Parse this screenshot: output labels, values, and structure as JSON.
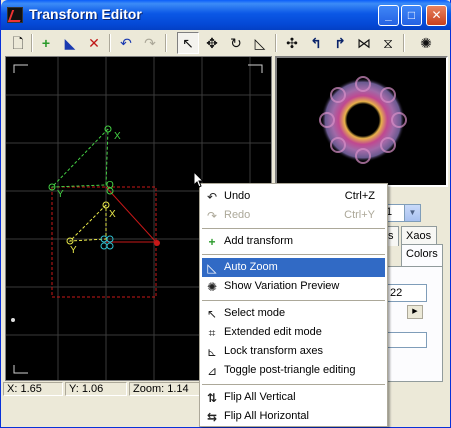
{
  "window": {
    "title": "Transform Editor"
  },
  "titlebar": {
    "minimize": "_",
    "maximize": "□",
    "close": "✕"
  },
  "toolbar": {
    "tools": [
      {
        "name": "new-icon",
        "glyph": "🗋"
      },
      {
        "name": "add-transform-icon",
        "glyph": "+"
      },
      {
        "name": "duplicate-icon",
        "glyph": "◣"
      },
      {
        "name": "delete-icon",
        "glyph": "✕"
      },
      {
        "name": "undo-icon",
        "glyph": "↶"
      },
      {
        "name": "redo-icon",
        "glyph": "↷"
      },
      {
        "name": "select-icon",
        "glyph": "↖"
      },
      {
        "name": "move-icon",
        "glyph": "✥"
      },
      {
        "name": "rotate-icon",
        "glyph": "↻"
      },
      {
        "name": "scale-icon",
        "glyph": "◺"
      },
      {
        "name": "transform-axes-icon",
        "glyph": "✣"
      },
      {
        "name": "rotate-left-icon",
        "glyph": "↰"
      },
      {
        "name": "rotate-right-icon",
        "glyph": "↱"
      },
      {
        "name": "flip-horizontal-icon",
        "glyph": "⋈"
      },
      {
        "name": "flip-vertical-icon",
        "glyph": "⧖"
      },
      {
        "name": "variation-preview-icon",
        "glyph": "✺"
      }
    ]
  },
  "panel": {
    "combo_value": "1",
    "tabs": [
      "s",
      "Xaos",
      "Colors"
    ],
    "field1": "22",
    "scroll_glyph": "▶"
  },
  "status": {
    "x": "X: 1.65",
    "y": "Y: 1.06",
    "zoom": "Zoom: 1.14"
  },
  "menu": {
    "items": [
      {
        "label": "Undo",
        "shortcut": "Ctrl+Z",
        "icon": "↶",
        "icon_name": "undo-icon",
        "disabled": false
      },
      {
        "label": "Redo",
        "shortcut": "Ctrl+Y",
        "icon": "↷",
        "icon_name": "redo-icon",
        "disabled": true
      },
      {
        "label": "Add transform",
        "shortcut": "",
        "icon": "+",
        "icon_name": "add-transform-icon",
        "disabled": false
      },
      {
        "label": "Auto Zoom",
        "shortcut": "",
        "icon": "◺",
        "icon_name": "auto-zoom-icon",
        "disabled": false,
        "selected": true
      },
      {
        "label": "Show Variation Preview",
        "shortcut": "",
        "icon": "✺",
        "icon_name": "variation-preview-icon",
        "disabled": false
      },
      {
        "label": "Select mode",
        "shortcut": "",
        "icon": "↖",
        "icon_name": "select-mode-icon",
        "disabled": false
      },
      {
        "label": "Extended edit mode",
        "shortcut": "",
        "icon": "⌗",
        "icon_name": "extended-edit-icon",
        "disabled": false
      },
      {
        "label": "Lock transform axes",
        "shortcut": "",
        "icon": "⊾",
        "icon_name": "lock-axes-icon",
        "disabled": false
      },
      {
        "label": "Toggle post-triangle editing",
        "shortcut": "",
        "icon": "⊿",
        "icon_name": "post-triangle-icon",
        "disabled": false
      },
      {
        "label": "Flip All Vertical",
        "shortcut": "",
        "icon": "⇅",
        "icon_name": "flip-vertical-icon",
        "disabled": false
      },
      {
        "label": "Flip All Horizontal",
        "shortcut": "",
        "icon": "⇆",
        "icon_name": "flip-horizontal-icon",
        "disabled": false
      }
    ]
  },
  "canvas": {
    "labels": {
      "x": "X",
      "y": "Y",
      "o": "O"
    },
    "colors": {
      "grid": "#3a3a3a",
      "green": "#44d144",
      "yellow": "#e8e84a",
      "red": "#c81818",
      "cyan": "#30c0d0"
    }
  }
}
